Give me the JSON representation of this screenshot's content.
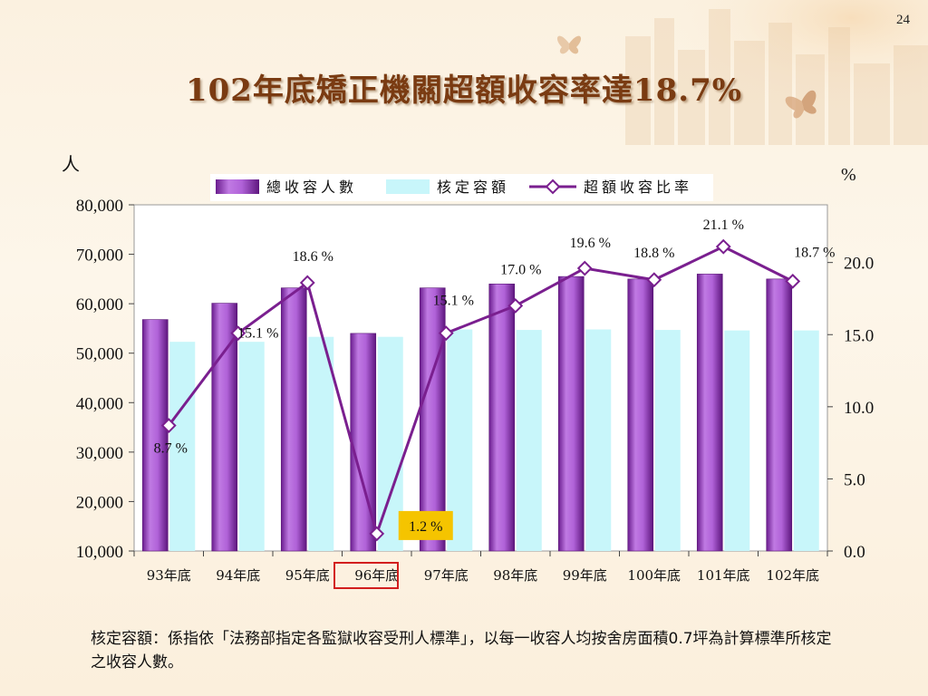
{
  "slide": {
    "page_number": "24",
    "title": "102年底矯正機關超額收容率達18.7%",
    "left_axis_unit": "人",
    "right_axis_unit": "%",
    "footnote": "核定容額：係指依「法務部指定各監獄收容受刑人標準」，以每一收容人均按舍房面積0.7坪為計算標準所核定之收容人數。"
  },
  "colors": {
    "bar_total": "#9b45c6",
    "bar_capacity": "#c8f6fa",
    "line": "#7a1f8f",
    "highlight_label_bg": "#f5c400",
    "highlight_box": "#d21e1e"
  },
  "chart_data": {
    "type": "bar",
    "categories": [
      "93年底",
      "94年底",
      "95年底",
      "96年底",
      "97年底",
      "98年底",
      "99年底",
      "100年底",
      "101年底",
      "102年底"
    ],
    "series": [
      {
        "name": "總收容人數",
        "kind": "bar",
        "axis": "left",
        "values": [
          56800,
          60100,
          63200,
          54000,
          63200,
          64000,
          65500,
          65000,
          66000,
          65000
        ]
      },
      {
        "name": "核定容額",
        "kind": "bar",
        "axis": "left",
        "values": [
          52300,
          52300,
          53300,
          53300,
          54800,
          54700,
          54800,
          54700,
          54600,
          54600
        ]
      },
      {
        "name": "超額收容比率",
        "kind": "line",
        "axis": "right",
        "values": [
          8.7,
          15.1,
          18.6,
          1.2,
          15.1,
          17.0,
          19.6,
          18.8,
          21.1,
          18.7
        ],
        "labels": [
          "8.7 %",
          "15.1 %",
          "18.6 %",
          "1.2 %",
          "15.1 %",
          "17.0 %",
          "19.6 %",
          "18.8 %",
          "21.1 %",
          "18.7 %"
        ]
      }
    ],
    "left_axis": {
      "ylim": [
        10000,
        80000
      ],
      "ticks": [
        "10,000",
        "20,000",
        "30,000",
        "40,000",
        "50,000",
        "60,000",
        "70,000",
        "80,000"
      ],
      "tick_values": [
        10000,
        20000,
        30000,
        40000,
        50000,
        60000,
        70000,
        80000
      ]
    },
    "right_axis": {
      "ylim": [
        0,
        24
      ],
      "ticks": [
        "0.0",
        "5.0",
        "10.0",
        "15.0",
        "20.0"
      ],
      "tick_values": [
        0,
        5,
        10,
        15,
        20
      ]
    },
    "legend": {
      "placement": "top",
      "entries": [
        "總收容人數",
        "核定容額",
        "超額收容比率"
      ]
    },
    "highlighted_category": "96年底"
  }
}
